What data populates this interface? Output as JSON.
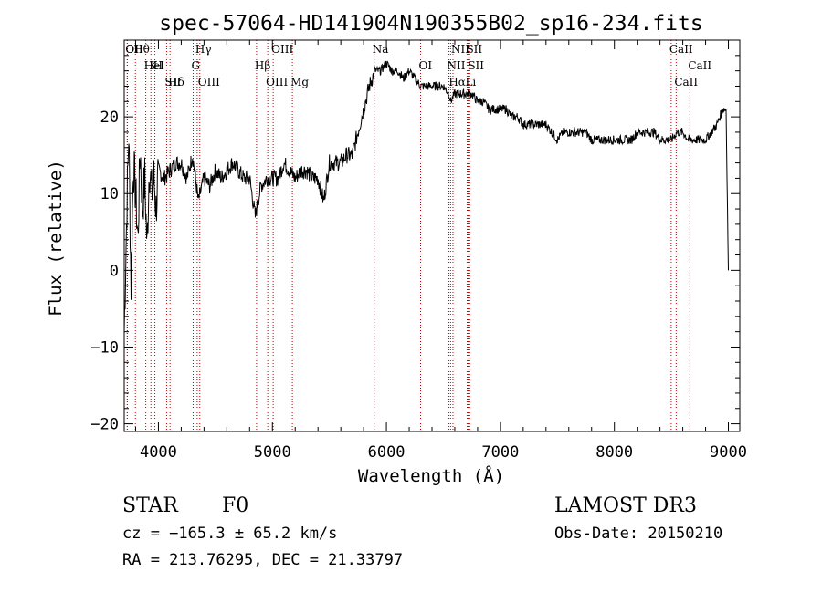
{
  "chart_data": {
    "type": "line",
    "title": "spec-57064-HD141904N190355B02_sp16-234.fits",
    "xlabel": "Wavelength (Å)",
    "ylabel": "Flux (relative)",
    "xlim": [
      3700,
      9100
    ],
    "ylim": [
      -21,
      30
    ],
    "x_ticks": [
      4000,
      5000,
      6000,
      7000,
      8000,
      9000
    ],
    "x_tick_labels": [
      "4000",
      "5000",
      "6000",
      "7000",
      "8000",
      "9000"
    ],
    "y_ticks": [
      -20,
      -10,
      0,
      10,
      20
    ],
    "y_tick_labels": [
      "−20",
      "−10",
      "0",
      "10",
      "20"
    ],
    "grid": false,
    "series": [
      {
        "name": "flux",
        "x": [
          3700,
          3720,
          3740,
          3760,
          3780,
          3800,
          3820,
          3840,
          3860,
          3880,
          3900,
          3920,
          3940,
          3960,
          3980,
          4000,
          4050,
          4100,
          4150,
          4200,
          4250,
          4300,
          4350,
          4400,
          4450,
          4500,
          4550,
          4600,
          4650,
          4700,
          4750,
          4800,
          4850,
          4861,
          4900,
          4950,
          5000,
          5050,
          5100,
          5150,
          5200,
          5250,
          5300,
          5350,
          5400,
          5450,
          5500,
          5550,
          5600,
          5650,
          5700,
          5750,
          5800,
          5850,
          5900,
          5950,
          6000,
          6050,
          6100,
          6150,
          6200,
          6250,
          6300,
          6350,
          6400,
          6450,
          6500,
          6550,
          6563,
          6600,
          6650,
          6700,
          6750,
          6800,
          6850,
          6900,
          6950,
          7000,
          7050,
          7100,
          7150,
          7200,
          7250,
          7300,
          7350,
          7400,
          7450,
          7500,
          7550,
          7600,
          7650,
          7700,
          7750,
          7800,
          7850,
          7900,
          7950,
          8000,
          8050,
          8100,
          8150,
          8200,
          8250,
          8300,
          8350,
          8400,
          8450,
          8500,
          8550,
          8600,
          8650,
          8700,
          8750,
          8800,
          8850,
          8900,
          8950,
          8980,
          9000
        ],
        "values": [
          -8,
          6,
          18,
          -2,
          14,
          10,
          4,
          16,
          8,
          12,
          3,
          14,
          10,
          12,
          8,
          13,
          12,
          13,
          14,
          14,
          12,
          15,
          9,
          12,
          11,
          13,
          12,
          13,
          14,
          13,
          12,
          12,
          7,
          8,
          11,
          12,
          12,
          12,
          14,
          13,
          12,
          13,
          13,
          12,
          12,
          9,
          14,
          14,
          14,
          15,
          15,
          18,
          21,
          24,
          26,
          26,
          27,
          26,
          26,
          25,
          26,
          25,
          24,
          24,
          24,
          24,
          24,
          23,
          22,
          23,
          23,
          23,
          23,
          22,
          22,
          21,
          21,
          21,
          21,
          20,
          20,
          19,
          19,
          19,
          19,
          19,
          18,
          17,
          18,
          18,
          18,
          18,
          18,
          17,
          17,
          17,
          17,
          17,
          17,
          17,
          17,
          18,
          18,
          18,
          18,
          17,
          17,
          17,
          18,
          18,
          17,
          17,
          17,
          17,
          18,
          19,
          21,
          21,
          0
        ]
      }
    ],
    "lines": [
      {
        "label": "Hθ",
        "x": 3798
      },
      {
        "label": "K",
        "x": 3934
      },
      {
        "label": "Hδ",
        "x": 4102
      },
      {
        "label": "OII",
        "x": 3727
      },
      {
        "label": "HeI",
        "x": 3889
      },
      {
        "label": "SII",
        "x": 4072
      },
      {
        "label": "OII",
        "x": 3727
      },
      {
        "label": "H",
        "x": 3969
      },
      {
        "label": "OIII",
        "x": 4363
      },
      {
        "label": "Hγ",
        "x": 4340
      },
      {
        "label": "G",
        "x": 4305
      },
      {
        "label": "OIII",
        "x": 4959
      },
      {
        "label": "OIII",
        "x": 5007
      },
      {
        "label": "Hβ",
        "x": 4861
      },
      {
        "label": "Mg",
        "x": 5175
      },
      {
        "label": "Na",
        "x": 5893
      },
      {
        "label": "OI",
        "x": 6300
      },
      {
        "label": "Hα",
        "x": 6563
      },
      {
        "label": "SII",
        "x": 6716
      },
      {
        "label": "NII",
        "x": 6548
      },
      {
        "label": "Li",
        "x": 6708
      },
      {
        "label": "NII",
        "x": 6584
      },
      {
        "label": "SII",
        "x": 6731
      },
      {
        "label": "CaII",
        "x": 8542
      },
      {
        "label": "CaII",
        "x": 8498
      },
      {
        "label": "CaII",
        "x": 8662
      }
    ]
  },
  "footer": {
    "class": "STAR",
    "subclass": "F0",
    "survey": "LAMOST DR3",
    "cz": "cz = −165.3 ± 65.2 km/s",
    "obs_date": "Obs-Date: 20150210",
    "coords": "RA = 213.76295, DEC =  21.33797"
  }
}
